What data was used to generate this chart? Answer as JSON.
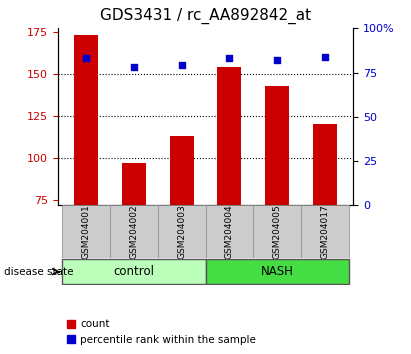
{
  "title": "GDS3431 / rc_AA892842_at",
  "samples": [
    "GSM204001",
    "GSM204002",
    "GSM204003",
    "GSM204004",
    "GSM204005",
    "GSM204017"
  ],
  "bar_values": [
    173,
    97,
    113,
    154,
    143,
    120
  ],
  "percentile_values": [
    83,
    78,
    79,
    83,
    82,
    84
  ],
  "bar_bottom": 72,
  "ylim_left": [
    72,
    177
  ],
  "ylim_right": [
    0,
    100
  ],
  "yticks_left": [
    75,
    100,
    125,
    150,
    175
  ],
  "yticks_right": [
    0,
    25,
    50,
    75,
    100
  ],
  "bar_color": "#cc0000",
  "dot_color": "#0000cc",
  "control_color": "#bbffbb",
  "nash_color": "#44dd44",
  "tick_label_bg": "#cccccc",
  "bar_width": 0.5,
  "legend_count_label": "count",
  "legend_pct_label": "percentile rank within the sample",
  "disease_state_label": "disease state",
  "control_label": "control",
  "nash_label": "NASH",
  "title_fontsize": 11,
  "tick_fontsize": 8,
  "grid_yticks": [
    100,
    125,
    150
  ]
}
